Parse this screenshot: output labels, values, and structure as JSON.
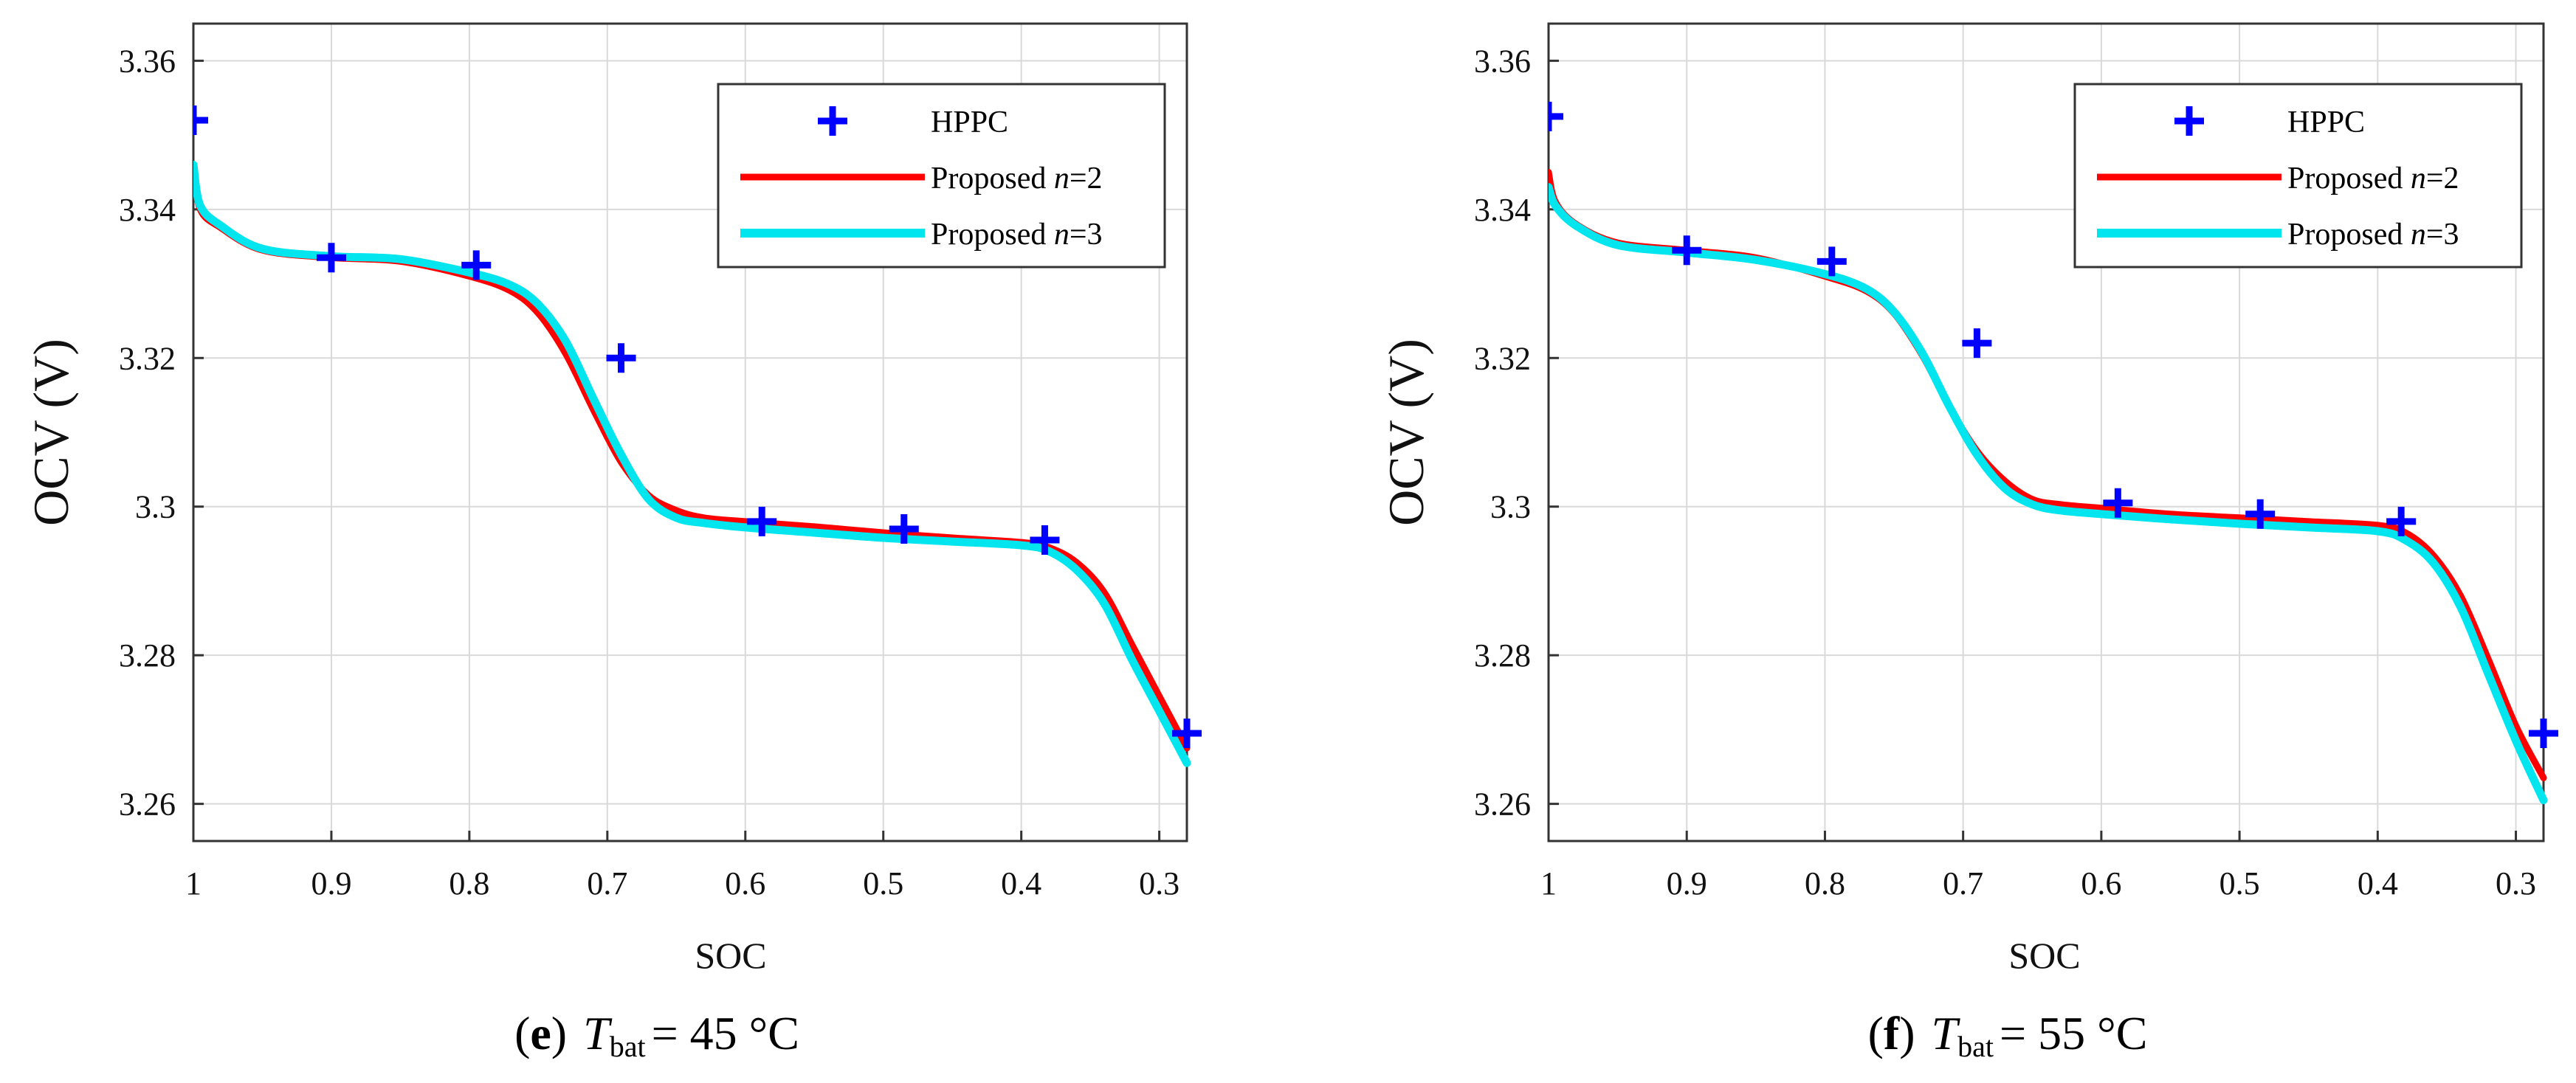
{
  "chart_data": [
    {
      "type": "line",
      "panel": "e",
      "xlabel": "SOC",
      "ylabel": "OCV (V)",
      "xlim": [
        1.0,
        0.28
      ],
      "ylim": [
        3.255,
        3.365
      ],
      "x_ticks": [
        1,
        0.9,
        0.8,
        0.7,
        0.6,
        0.5,
        0.4,
        0.3
      ],
      "x_tick_labels": [
        "1",
        "0.9",
        "0.8",
        "0.7",
        "0.6",
        "0.5",
        "0.4",
        "0.3"
      ],
      "y_ticks": [
        3.26,
        3.28,
        3.3,
        3.32,
        3.34,
        3.36
      ],
      "y_tick_labels": [
        "3.26",
        "3.28",
        "3.3",
        "3.32",
        "3.34",
        "3.36"
      ],
      "grid": true,
      "legend_position": "top-right",
      "caption": {
        "letter": "e",
        "prefix": "(",
        "suffix": ")",
        "symbol": "T",
        "subscript": "bat",
        "value": "= 45 °C"
      },
      "series": [
        {
          "name": "HPPC",
          "style": "markers",
          "color": "#0000ff",
          "x": [
            1.0,
            0.9,
            0.795,
            0.69,
            0.588,
            0.485,
            0.383,
            0.28
          ],
          "y": [
            3.352,
            3.3335,
            3.3325,
            3.32,
            3.298,
            3.297,
            3.2955,
            3.2695
          ]
        },
        {
          "name": "Proposed n=2",
          "legend_prefix": "Proposed ",
          "legend_var": "n",
          "legend_suffix": "=2",
          "style": "line",
          "color": "#ff0000",
          "x": [
            1.0,
            0.995,
            0.98,
            0.95,
            0.9,
            0.85,
            0.8,
            0.77,
            0.75,
            0.73,
            0.71,
            0.69,
            0.67,
            0.65,
            0.63,
            0.6,
            0.55,
            0.5,
            0.45,
            0.4,
            0.38,
            0.36,
            0.34,
            0.32,
            0.3,
            0.28
          ],
          "y": [
            3.346,
            3.34,
            3.3375,
            3.3345,
            3.3335,
            3.333,
            3.331,
            3.329,
            3.326,
            3.3205,
            3.313,
            3.306,
            3.3015,
            3.2995,
            3.2985,
            3.298,
            3.2973,
            3.2965,
            3.2958,
            3.2952,
            3.2945,
            3.2925,
            3.2885,
            3.2815,
            3.2745,
            3.2675
          ]
        },
        {
          "name": "Proposed n=3",
          "legend_prefix": "Proposed ",
          "legend_var": "n",
          "legend_suffix": "=3",
          "style": "line",
          "color": "#00e5ee",
          "x": [
            1.0,
            0.995,
            0.98,
            0.95,
            0.9,
            0.85,
            0.8,
            0.77,
            0.75,
            0.73,
            0.71,
            0.69,
            0.67,
            0.65,
            0.63,
            0.6,
            0.55,
            0.5,
            0.45,
            0.4,
            0.38,
            0.36,
            0.34,
            0.32,
            0.3,
            0.28
          ],
          "y": [
            3.346,
            3.3405,
            3.3378,
            3.3347,
            3.3337,
            3.3333,
            3.3315,
            3.3298,
            3.3272,
            3.3222,
            3.3145,
            3.307,
            3.301,
            3.2985,
            3.2978,
            3.2972,
            3.2965,
            3.2958,
            3.2953,
            3.2948,
            3.294,
            3.2915,
            3.287,
            3.2795,
            3.2725,
            3.2655
          ]
        }
      ]
    },
    {
      "type": "line",
      "panel": "f",
      "xlabel": "SOC",
      "ylabel": "OCV (V)",
      "xlim": [
        1.0,
        0.28
      ],
      "ylim": [
        3.255,
        3.365
      ],
      "x_ticks": [
        1,
        0.9,
        0.8,
        0.7,
        0.6,
        0.5,
        0.4,
        0.3
      ],
      "x_tick_labels": [
        "1",
        "0.9",
        "0.8",
        "0.7",
        "0.6",
        "0.5",
        "0.4",
        "0.3"
      ],
      "y_ticks": [
        3.26,
        3.28,
        3.3,
        3.32,
        3.34,
        3.36
      ],
      "y_tick_labels": [
        "3.26",
        "3.28",
        "3.3",
        "3.32",
        "3.34",
        "3.36"
      ],
      "grid": true,
      "legend_position": "top-right",
      "caption": {
        "letter": "f",
        "prefix": "(",
        "suffix": ")",
        "symbol": "T",
        "subscript": "bat",
        "value": "= 55 °C"
      },
      "series": [
        {
          "name": "HPPC",
          "style": "markers",
          "color": "#0000ff",
          "x": [
            1.0,
            0.9,
            0.795,
            0.69,
            0.588,
            0.485,
            0.383,
            0.28
          ],
          "y": [
            3.3525,
            3.3345,
            3.333,
            3.322,
            3.3005,
            3.299,
            3.298,
            3.2695
          ]
        },
        {
          "name": "Proposed n=2",
          "legend_prefix": "Proposed ",
          "legend_var": "n",
          "legend_suffix": "=2",
          "style": "line",
          "color": "#ff0000",
          "x": [
            1.0,
            0.995,
            0.98,
            0.95,
            0.9,
            0.85,
            0.8,
            0.77,
            0.75,
            0.73,
            0.71,
            0.69,
            0.67,
            0.65,
            0.63,
            0.6,
            0.55,
            0.5,
            0.45,
            0.4,
            0.38,
            0.36,
            0.34,
            0.32,
            0.3,
            0.28
          ],
          "y": [
            3.345,
            3.341,
            3.338,
            3.3355,
            3.3345,
            3.3335,
            3.331,
            3.329,
            3.326,
            3.3205,
            3.3135,
            3.3075,
            3.3035,
            3.301,
            3.3003,
            3.2998,
            3.299,
            3.2985,
            3.298,
            3.2975,
            3.2965,
            3.2935,
            3.288,
            3.2795,
            3.2705,
            3.2635
          ]
        },
        {
          "name": "Proposed n=3",
          "legend_prefix": "Proposed ",
          "legend_var": "n",
          "legend_suffix": "=3",
          "style": "line",
          "color": "#00e5ee",
          "x": [
            1.0,
            0.995,
            0.98,
            0.95,
            0.9,
            0.85,
            0.8,
            0.77,
            0.75,
            0.73,
            0.71,
            0.69,
            0.67,
            0.65,
            0.63,
            0.6,
            0.55,
            0.5,
            0.45,
            0.4,
            0.38,
            0.36,
            0.34,
            0.32,
            0.3,
            0.28
          ],
          "y": [
            3.343,
            3.3405,
            3.3378,
            3.3352,
            3.3342,
            3.3332,
            3.3313,
            3.3293,
            3.3262,
            3.3208,
            3.3135,
            3.307,
            3.3025,
            3.3003,
            3.2995,
            3.299,
            3.2983,
            3.2977,
            3.2972,
            3.2967,
            3.2955,
            3.2925,
            3.2865,
            3.2775,
            3.2685,
            3.2605
          ]
        }
      ]
    }
  ]
}
